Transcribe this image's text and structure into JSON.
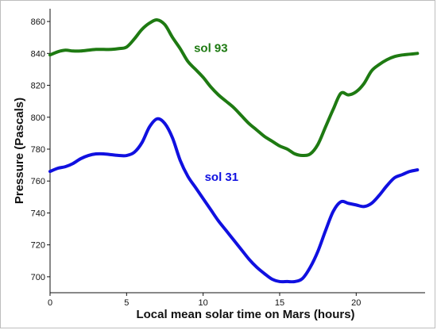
{
  "chart_data": {
    "type": "line",
    "title": "",
    "xlabel": "Local mean solar time on Mars (hours)",
    "ylabel": "Pressure (Pascals)",
    "xlim": [
      0,
      24.5
    ],
    "ylim": [
      690,
      868
    ],
    "xticks": [
      0,
      5,
      10,
      15,
      20
    ],
    "yticks": [
      700,
      720,
      740,
      760,
      780,
      800,
      820,
      840,
      860
    ],
    "grid": false,
    "legend": "none",
    "series": [
      {
        "name": "sol 93",
        "color": "#1e7a12",
        "label_at": [
          9.4,
          841
        ],
        "x": [
          0,
          0.5,
          1,
          1.5,
          2,
          2.5,
          3,
          3.5,
          4,
          4.5,
          5,
          5.5,
          6,
          6.5,
          7,
          7.5,
          8,
          8.5,
          9,
          9.5,
          10,
          10.5,
          11,
          11.5,
          12,
          12.5,
          13,
          13.5,
          14,
          14.5,
          15,
          15.5,
          16,
          16.5,
          17,
          17.5,
          18,
          18.5,
          19,
          19.5,
          20,
          20.5,
          21,
          21.5,
          22,
          22.5,
          23,
          23.5,
          24
        ],
        "y": [
          839,
          841,
          842,
          841.5,
          841.5,
          842,
          842.5,
          842.5,
          842.5,
          843,
          844,
          849,
          855,
          859,
          861,
          858,
          850,
          843,
          835,
          830,
          825,
          819,
          814,
          810,
          806,
          801,
          796,
          792,
          788,
          785,
          782,
          780,
          777,
          776,
          777,
          783,
          794,
          805,
          815,
          814,
          816,
          821,
          829,
          833,
          836,
          838,
          839,
          839.5,
          840
        ]
      },
      {
        "name": "sol 31",
        "color": "#1010e0",
        "label_at": [
          10.1,
          760
        ],
        "x": [
          0,
          0.5,
          1,
          1.5,
          2,
          2.5,
          3,
          3.5,
          4,
          4.5,
          5,
          5.5,
          6,
          6.5,
          7,
          7.5,
          8,
          8.5,
          9,
          9.5,
          10,
          10.5,
          11,
          11.5,
          12,
          12.5,
          13,
          13.5,
          14,
          14.5,
          15,
          15.5,
          16,
          16.5,
          17,
          17.5,
          18,
          18.5,
          19,
          19.5,
          20,
          20.5,
          21,
          21.5,
          22,
          22.5,
          23,
          23.5,
          24
        ],
        "y": [
          766,
          768,
          769,
          771,
          774,
          776,
          777,
          777,
          776.5,
          776,
          776,
          778,
          784,
          794,
          799,
          796,
          787,
          773,
          763,
          756,
          749,
          742,
          735,
          729,
          723,
          717,
          711,
          706,
          702,
          698.5,
          697,
          697,
          697,
          699,
          706,
          716,
          729,
          741,
          747,
          746,
          745,
          744,
          746,
          751,
          757,
          762,
          764,
          766,
          767
        ]
      }
    ]
  }
}
